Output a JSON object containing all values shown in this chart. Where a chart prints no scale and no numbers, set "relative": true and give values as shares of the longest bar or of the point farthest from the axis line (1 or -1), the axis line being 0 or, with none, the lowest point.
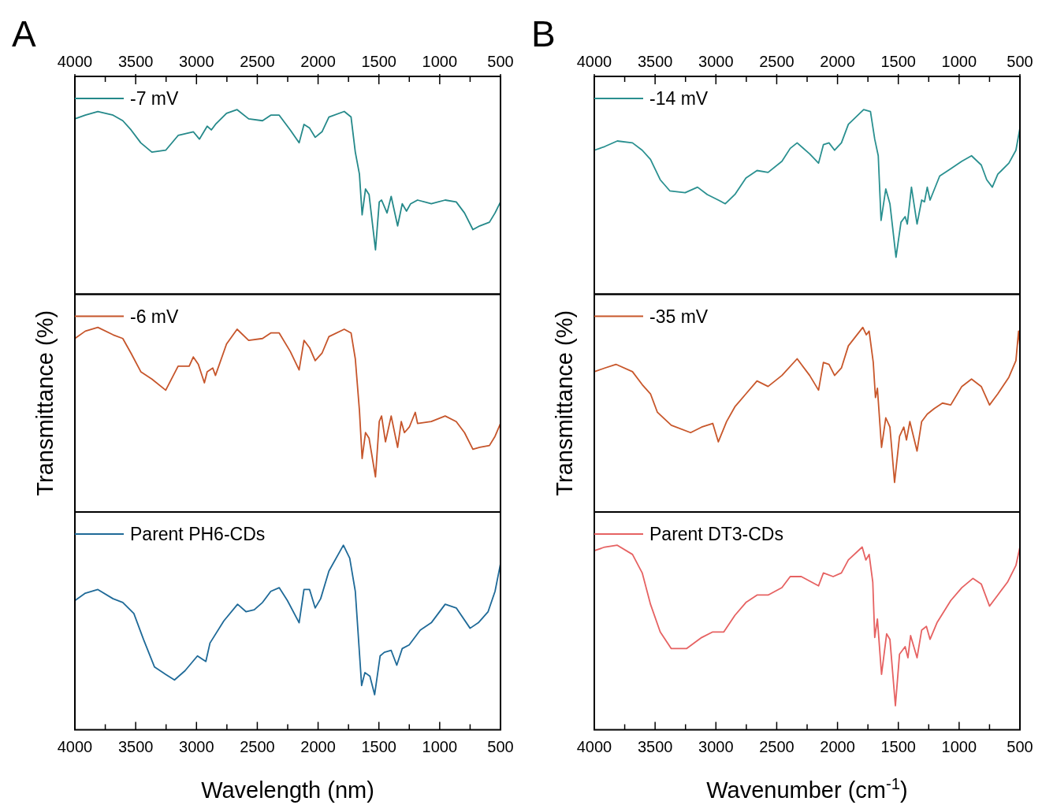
{
  "chart_data": [
    {
      "type": "line",
      "title": "A",
      "relative": true,
      "legend": "top left",
      "xlim": [
        4000,
        500
      ],
      "x2lim": [
        4000,
        500
      ],
      "x2ticks": [
        4000,
        3500,
        3000,
        2500,
        2000,
        1500,
        1000,
        500
      ],
      "x": [
        4000,
        3914,
        3811,
        3686,
        3606,
        3538,
        3458,
        3367,
        3253,
        3151,
        3026,
        2976,
        2912,
        2878,
        2844,
        2753,
        2666,
        2571,
        2457,
        2389,
        2320,
        2229,
        2156,
        2116,
        2070,
        2024,
        1968,
        1911,
        1785,
        1729,
        1694,
        1660,
        1638,
        1610,
        1581,
        1528,
        1497,
        1478,
        1433,
        1399,
        1346,
        1308,
        1273,
        1239,
        1182,
        1069,
        955,
        864,
        796,
        727,
        671,
        591,
        545,
        500
      ],
      "series": [
        {
          "name": "-7 mV",
          "color": "#25898a",
          "values": [
            0.95,
            0.97,
            0.99,
            0.97,
            0.94,
            0.89,
            0.82,
            0.77,
            0.78,
            0.86,
            0.88,
            0.84,
            0.91,
            0.89,
            0.92,
            0.98,
            1.0,
            0.95,
            0.94,
            0.97,
            0.97,
            0.89,
            0.82,
            0.92,
            0.9,
            0.85,
            0.88,
            0.96,
            0.99,
            0.96,
            0.77,
            0.65,
            0.43,
            0.57,
            0.54,
            0.24,
            0.5,
            0.51,
            0.44,
            0.53,
            0.37,
            0.49,
            0.45,
            0.49,
            0.51,
            0.49,
            0.51,
            0.5,
            0.44,
            0.35,
            0.37,
            0.39,
            0.44,
            0.5
          ]
        }
      ]
    },
    {
      "type": "line",
      "ylabel": "Transmittance (%)",
      "relative": true,
      "legend": "top left",
      "xlim": [
        4000,
        500
      ],
      "x": [
        4000,
        3914,
        3811,
        3686,
        3606,
        3538,
        3458,
        3367,
        3253,
        3151,
        3060,
        3026,
        2985,
        2935,
        2912,
        2866,
        2844,
        2753,
        2666,
        2571,
        2457,
        2389,
        2320,
        2229,
        2156,
        2116,
        2070,
        2024,
        1968,
        1911,
        1785,
        1729,
        1694,
        1660,
        1638,
        1610,
        1581,
        1528,
        1497,
        1478,
        1446,
        1399,
        1346,
        1316,
        1290,
        1250,
        1201,
        1182,
        1069,
        955,
        864,
        796,
        727,
        671,
        591,
        545,
        500
      ],
      "series": [
        {
          "name": "-6 mV",
          "color": "#c6552b",
          "values": [
            0.94,
            0.98,
            1.0,
            0.96,
            0.94,
            0.86,
            0.76,
            0.72,
            0.66,
            0.79,
            0.79,
            0.84,
            0.8,
            0.7,
            0.76,
            0.78,
            0.74,
            0.91,
            0.99,
            0.93,
            0.94,
            0.97,
            0.97,
            0.87,
            0.77,
            0.93,
            0.89,
            0.82,
            0.86,
            0.95,
            0.99,
            0.97,
            0.83,
            0.55,
            0.29,
            0.43,
            0.4,
            0.19,
            0.49,
            0.52,
            0.38,
            0.52,
            0.35,
            0.49,
            0.43,
            0.46,
            0.54,
            0.48,
            0.49,
            0.52,
            0.49,
            0.43,
            0.34,
            0.35,
            0.36,
            0.41,
            0.48
          ]
        }
      ]
    },
    {
      "type": "line",
      "xlabel": "Wavelength (nm)",
      "relative": true,
      "legend": "top left",
      "xlim": [
        4000,
        500
      ],
      "xticks": [
        4000,
        {
          "value": 3750,
          "label": null
        },
        3500,
        {
          "value": 3250,
          "label": null
        },
        3000,
        {
          "value": 2750,
          "label": null
        },
        2500,
        {
          "value": 2250,
          "label": null
        },
        2000,
        {
          "value": 1750,
          "label": null
        },
        1500,
        {
          "value": 1250,
          "label": null
        },
        1000,
        {
          "value": 750,
          "label": null
        },
        500
      ],
      "x": [
        4000,
        3914,
        3811,
        3686,
        3606,
        3515,
        3436,
        3345,
        3253,
        3181,
        3094,
        2992,
        2923,
        2889,
        2775,
        2662,
        2593,
        2525,
        2457,
        2389,
        2320,
        2252,
        2156,
        2116,
        2070,
        2024,
        1979,
        1911,
        1792,
        1740,
        1694,
        1642,
        1615,
        1574,
        1535,
        1490,
        1455,
        1399,
        1353,
        1308,
        1251,
        1160,
        1069,
        955,
        864,
        750,
        682,
        602,
        545,
        500
      ],
      "series": [
        {
          "name": "Parent PH6-CDs",
          "color": "#1f6a98",
          "values": [
            0.7,
            0.74,
            0.76,
            0.71,
            0.69,
            0.63,
            0.49,
            0.34,
            0.3,
            0.27,
            0.32,
            0.4,
            0.37,
            0.47,
            0.59,
            0.68,
            0.64,
            0.65,
            0.69,
            0.75,
            0.77,
            0.7,
            0.58,
            0.76,
            0.76,
            0.66,
            0.71,
            0.86,
            1.0,
            0.93,
            0.75,
            0.24,
            0.31,
            0.29,
            0.19,
            0.4,
            0.42,
            0.43,
            0.35,
            0.44,
            0.46,
            0.54,
            0.58,
            0.68,
            0.66,
            0.55,
            0.58,
            0.64,
            0.75,
            0.9
          ]
        }
      ]
    },
    {
      "type": "line",
      "title": "B",
      "relative": true,
      "legend": "top left",
      "xlim": [
        4000,
        500
      ],
      "x2lim": [
        4000,
        500
      ],
      "x2ticks": [
        4000,
        3500,
        3000,
        2500,
        2000,
        1500,
        1000,
        500
      ],
      "x": [
        4000,
        3914,
        3811,
        3686,
        3606,
        3538,
        3458,
        3379,
        3253,
        3151,
        3071,
        2980,
        2923,
        2844,
        2753,
        2662,
        2571,
        2457,
        2389,
        2332,
        2229,
        2156,
        2116,
        2070,
        2024,
        1968,
        1911,
        1785,
        1729,
        1694,
        1665,
        1642,
        1603,
        1569,
        1519,
        1478,
        1444,
        1426,
        1392,
        1346,
        1308,
        1285,
        1262,
        1239,
        1160,
        1069,
        978,
        898,
        818,
        773,
        727,
        682,
        591,
        533,
        500
      ],
      "series": [
        {
          "name": "-14 mV",
          "color": "#2a9090",
          "values": [
            0.78,
            0.8,
            0.83,
            0.82,
            0.78,
            0.73,
            0.62,
            0.56,
            0.55,
            0.58,
            0.54,
            0.51,
            0.49,
            0.54,
            0.63,
            0.67,
            0.66,
            0.72,
            0.79,
            0.82,
            0.76,
            0.71,
            0.81,
            0.82,
            0.78,
            0.82,
            0.92,
            1.0,
            0.99,
            0.84,
            0.75,
            0.4,
            0.57,
            0.49,
            0.2,
            0.39,
            0.42,
            0.38,
            0.58,
            0.38,
            0.51,
            0.5,
            0.58,
            0.51,
            0.64,
            0.68,
            0.72,
            0.75,
            0.7,
            0.62,
            0.58,
            0.65,
            0.71,
            0.78,
            0.9
          ]
        }
      ]
    },
    {
      "type": "line",
      "ylabel": "Transmittance (%)",
      "relative": true,
      "legend": "top left",
      "xlim": [
        4000,
        500
      ],
      "x": [
        4000,
        3914,
        3822,
        3686,
        3606,
        3538,
        3481,
        3367,
        3208,
        3117,
        3026,
        2980,
        2912,
        2844,
        2753,
        2662,
        2571,
        2457,
        2332,
        2229,
        2156,
        2116,
        2070,
        2024,
        1968,
        1911,
        1792,
        1763,
        1740,
        1706,
        1688,
        1672,
        1638,
        1603,
        1569,
        1531,
        1490,
        1455,
        1433,
        1405,
        1346,
        1308,
        1262,
        1205,
        1137,
        1069,
        978,
        898,
        818,
        750,
        682,
        591,
        533,
        511,
        500
      ],
      "series": [
        {
          "name": "-35 mV",
          "color": "#c8572b",
          "values": [
            0.76,
            0.78,
            0.8,
            0.76,
            0.69,
            0.64,
            0.54,
            0.47,
            0.43,
            0.46,
            0.48,
            0.38,
            0.49,
            0.57,
            0.64,
            0.71,
            0.68,
            0.74,
            0.83,
            0.74,
            0.66,
            0.81,
            0.8,
            0.74,
            0.78,
            0.9,
            1.0,
            0.96,
            0.98,
            0.81,
            0.62,
            0.67,
            0.35,
            0.51,
            0.46,
            0.16,
            0.41,
            0.46,
            0.39,
            0.49,
            0.33,
            0.49,
            0.53,
            0.56,
            0.59,
            0.58,
            0.68,
            0.72,
            0.68,
            0.58,
            0.64,
            0.73,
            0.82,
            0.98,
            0.9
          ]
        }
      ]
    },
    {
      "type": "line",
      "xlabel": "Wavenumber (cm$^{-1}$)",
      "relative": true,
      "legend": "top left",
      "xlim": [
        4000,
        500
      ],
      "xticks": [
        4000,
        {
          "value": 3750,
          "label": null
        },
        3500,
        {
          "value": 3250,
          "label": null
        },
        3000,
        {
          "value": 2750,
          "label": null
        },
        2500,
        {
          "value": 2250,
          "label": null
        },
        2000,
        {
          "value": 1750,
          "label": null
        },
        1500,
        {
          "value": 1250,
          "label": null
        },
        1000,
        {
          "value": 750,
          "label": null
        },
        500
      ],
      "x": [
        4000,
        3914,
        3811,
        3686,
        3606,
        3538,
        3458,
        3367,
        3242,
        3117,
        3026,
        2935,
        2844,
        2753,
        2662,
        2571,
        2457,
        2389,
        2298,
        2156,
        2116,
        2036,
        1968,
        1911,
        1797,
        1767,
        1740,
        1710,
        1694,
        1672,
        1638,
        1596,
        1569,
        1524,
        1490,
        1444,
        1421,
        1399,
        1346,
        1308,
        1269,
        1239,
        1182,
        1069,
        978,
        887,
        818,
        750,
        682,
        602,
        533,
        500
      ],
      "series": [
        {
          "name": "Parent DT3-CDs",
          "color": "#e66262",
          "values": [
            0.97,
            0.99,
            1.0,
            0.95,
            0.85,
            0.68,
            0.53,
            0.44,
            0.44,
            0.5,
            0.53,
            0.53,
            0.62,
            0.69,
            0.73,
            0.73,
            0.77,
            0.83,
            0.83,
            0.78,
            0.85,
            0.83,
            0.85,
            0.92,
            0.99,
            0.92,
            0.95,
            0.8,
            0.5,
            0.6,
            0.3,
            0.52,
            0.49,
            0.13,
            0.41,
            0.45,
            0.39,
            0.51,
            0.39,
            0.54,
            0.56,
            0.49,
            0.58,
            0.7,
            0.77,
            0.82,
            0.79,
            0.67,
            0.73,
            0.8,
            0.89,
            0.99
          ]
        }
      ]
    }
  ]
}
